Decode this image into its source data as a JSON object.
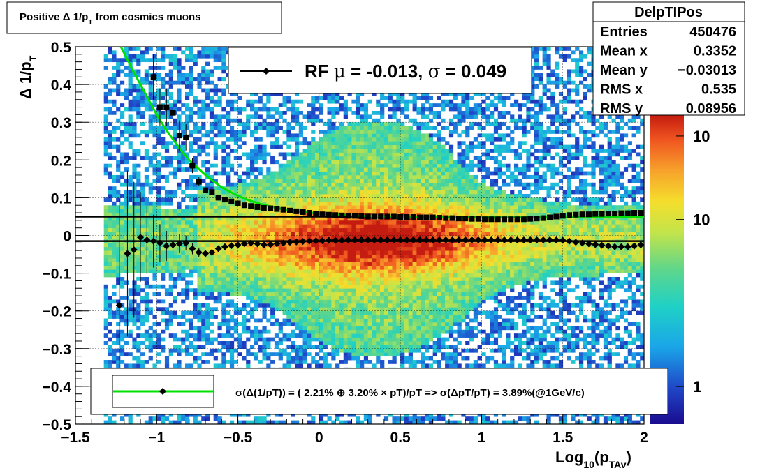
{
  "chart_data": {
    "type": "heatmap",
    "title": "Positive Δ 1/p",
    "title_sub": "T",
    "title_tail": " from cosmics muons",
    "ylabel": "Δ 1/p",
    "ylabel_sub": "T",
    "xlabel": "Log",
    "xlabel_sub": "10",
    "xlabel_mid": "(p",
    "xlabel_sub2": "TAv",
    "xlabel_end": ")",
    "xlim": [
      -1.5,
      2.0
    ],
    "ylim": [
      -0.5,
      0.5
    ],
    "xticks": [
      -1.5,
      -1.0,
      -0.5,
      0,
      0.5,
      1.0,
      1.5,
      2.0
    ],
    "xtick_labels": [
      "−1.5",
      "−1",
      "−0.5",
      "0",
      "0.5",
      "1",
      "1.5",
      "2"
    ],
    "yticks": [
      0.5,
      0.4,
      0.3,
      0.2,
      0.1,
      0,
      -0.1,
      -0.2,
      -0.3,
      -0.4,
      -0.5
    ],
    "ytick_labels": [
      "0.5",
      "0.4",
      "0.3",
      "0.2",
      "0.1",
      "0",
      "−0.1",
      "−0.2",
      "−0.3",
      "−0.4",
      "−0.5"
    ],
    "grid": true,
    "colorbar": {
      "scale": "log",
      "labels": [
        {
          "text": "10",
          "log10": 3.0
        },
        {
          "text": "10",
          "log10": 2.0
        },
        {
          "text": "1",
          "log10": 0.0
        }
      ],
      "range_log10": [
        -0.45,
        3.25
      ]
    },
    "legend_fit": {
      "label_prefix": "RF ",
      "mu_symbol": "μ",
      "mu_text": " = -0.013, ",
      "sigma_symbol": "σ",
      "sigma_text": " =   0.049"
    },
    "legend_resolution": {
      "text": "σ(Δ(1/pT)) = ( 2.21% ⊕  3.20% × pT)/pT => σ(ΔpT/pT) =  3.89%(@1GeV/c)"
    },
    "stats": {
      "name": "DelpTIPos",
      "rows": [
        {
          "label": "Entries",
          "value": "450476"
        },
        {
          "label": "Mean x",
          "value": "0.3352"
        },
        {
          "label": "Mean y",
          "value": "−0.03013"
        },
        {
          "label": "RMS x",
          "value": "0.535"
        },
        {
          "label": "RMS y",
          "value": "0.08956"
        }
      ]
    },
    "reference_lines": [
      0.05,
      -0.015
    ],
    "series": [
      {
        "name": "mean",
        "marker": "diamond",
        "x": [
          -1.23,
          -1.18,
          -1.14,
          -1.1,
          -1.06,
          -1.02,
          -0.98,
          -0.94,
          -0.9,
          -0.86,
          -0.82,
          -0.78,
          -0.74,
          -0.7,
          -0.66,
          -0.62,
          -0.58,
          -0.54,
          -0.5,
          -0.46,
          -0.42,
          -0.38,
          -0.34,
          -0.3,
          -0.26,
          -0.22,
          -0.18,
          -0.14,
          -0.1,
          -0.06,
          -0.02,
          0.02,
          0.06,
          0.1,
          0.14,
          0.18,
          0.22,
          0.26,
          0.3,
          0.34,
          0.38,
          0.42,
          0.46,
          0.5,
          0.54,
          0.58,
          0.62,
          0.66,
          0.7,
          0.74,
          0.78,
          0.82,
          0.86,
          0.9,
          0.94,
          0.98,
          1.02,
          1.06,
          1.1,
          1.14,
          1.18,
          1.22,
          1.26,
          1.3,
          1.34,
          1.38,
          1.42,
          1.46,
          1.5,
          1.54,
          1.58,
          1.62,
          1.66,
          1.7,
          1.74,
          1.78,
          1.82,
          1.86,
          1.9,
          1.94,
          1.98
        ],
        "y": [
          -0.185,
          -0.048,
          -0.038,
          -0.005,
          -0.012,
          -0.015,
          -0.02,
          -0.028,
          -0.025,
          -0.022,
          -0.02,
          -0.035,
          -0.045,
          -0.048,
          -0.045,
          -0.035,
          -0.03,
          -0.027,
          -0.025,
          -0.022,
          -0.02,
          -0.022,
          -0.025,
          -0.024,
          -0.022,
          -0.02,
          -0.018,
          -0.017,
          -0.016,
          -0.015,
          -0.014,
          -0.014,
          -0.013,
          -0.013,
          -0.013,
          -0.012,
          -0.012,
          -0.012,
          -0.012,
          -0.012,
          -0.012,
          -0.012,
          -0.012,
          -0.012,
          -0.012,
          -0.012,
          -0.012,
          -0.012,
          -0.012,
          -0.012,
          -0.012,
          -0.012,
          -0.012,
          -0.012,
          -0.012,
          -0.012,
          -0.012,
          -0.012,
          -0.012,
          -0.012,
          -0.012,
          -0.012,
          -0.012,
          -0.012,
          -0.012,
          -0.012,
          -0.012,
          -0.012,
          -0.013,
          -0.015,
          -0.018,
          -0.02,
          -0.022,
          -0.024,
          -0.026,
          -0.028,
          -0.03,
          -0.03,
          -0.03,
          -0.028,
          -0.025
        ],
        "err": [
          0.28,
          0.22,
          0.18,
          0.12,
          0.09,
          0.07,
          0.05,
          0.04,
          0.03,
          0.025,
          0.02,
          0.015,
          0.012,
          0.01,
          0.008,
          0.006,
          0.005,
          0.004,
          0.004,
          0.003,
          0.003,
          0.003,
          0.003,
          0.003,
          0.003,
          0.003,
          0.003,
          0.003,
          0.003,
          0.003,
          0.003,
          0.003,
          0.003,
          0.003,
          0.003,
          0.003,
          0.003,
          0.003,
          0.003,
          0.003,
          0.003,
          0.003,
          0.003,
          0.003,
          0.003,
          0.003,
          0.003,
          0.003,
          0.003,
          0.003,
          0.003,
          0.003,
          0.003,
          0.003,
          0.003,
          0.003,
          0.003,
          0.003,
          0.003,
          0.003,
          0.003,
          0.003,
          0.003,
          0.003,
          0.004,
          0.004,
          0.004,
          0.004,
          0.005,
          0.005,
          0.005,
          0.005,
          0.005,
          0.006,
          0.006,
          0.006,
          0.006,
          0.006,
          0.006,
          0.006,
          0.006
        ]
      },
      {
        "name": "sigma",
        "marker": "square",
        "x": [
          -1.02,
          -0.98,
          -0.94,
          -0.9,
          -0.86,
          -0.82,
          -0.78,
          -0.74,
          -0.7,
          -0.66,
          -0.62,
          -0.58,
          -0.54,
          -0.5,
          -0.46,
          -0.42,
          -0.38,
          -0.34,
          -0.3,
          -0.26,
          -0.22,
          -0.18,
          -0.14,
          -0.1,
          -0.06,
          -0.02,
          0.02,
          0.06,
          0.1,
          0.14,
          0.18,
          0.22,
          0.26,
          0.3,
          0.34,
          0.38,
          0.42,
          0.46,
          0.5,
          0.54,
          0.58,
          0.62,
          0.66,
          0.7,
          0.74,
          0.78,
          0.82,
          0.86,
          0.9,
          0.94,
          0.98,
          1.02,
          1.06,
          1.1,
          1.14,
          1.18,
          1.22,
          1.26,
          1.3,
          1.34,
          1.38,
          1.42,
          1.46,
          1.5,
          1.54,
          1.58,
          1.62,
          1.66,
          1.7,
          1.74,
          1.78,
          1.82,
          1.86,
          1.9,
          1.94,
          1.98
        ],
        "y": [
          0.42,
          0.34,
          0.34,
          0.325,
          0.265,
          0.26,
          0.185,
          0.142,
          0.12,
          0.115,
          0.1,
          0.095,
          0.09,
          0.085,
          0.08,
          0.078,
          0.075,
          0.073,
          0.072,
          0.07,
          0.068,
          0.066,
          0.064,
          0.062,
          0.06,
          0.058,
          0.056,
          0.055,
          0.054,
          0.053,
          0.052,
          0.052,
          0.051,
          0.05,
          0.05,
          0.05,
          0.05,
          0.05,
          0.049,
          0.049,
          0.049,
          0.048,
          0.048,
          0.048,
          0.047,
          0.046,
          0.046,
          0.045,
          0.045,
          0.044,
          0.044,
          0.043,
          0.043,
          0.043,
          0.043,
          0.043,
          0.043,
          0.043,
          0.044,
          0.045,
          0.046,
          0.048,
          0.05,
          0.052,
          0.054,
          0.055,
          0.056,
          0.056,
          0.057,
          0.057,
          0.058,
          0.058,
          0.059,
          0.059,
          0.06,
          0.06
        ],
        "err": [
          0.06,
          0.05,
          0.05,
          0.045,
          0.04,
          0.035,
          0.02,
          0.012,
          0.008,
          0.006,
          0.005,
          0.004,
          0.004,
          0.003,
          0.003,
          0.003,
          0.003,
          0.003,
          0.003,
          0.003,
          0.003,
          0.003,
          0.003,
          0.003,
          0.003,
          0.003,
          0.003,
          0.003,
          0.003,
          0.003,
          0.003,
          0.003,
          0.003,
          0.003,
          0.003,
          0.003,
          0.003,
          0.003,
          0.003,
          0.003,
          0.003,
          0.003,
          0.003,
          0.003,
          0.003,
          0.003,
          0.003,
          0.003,
          0.003,
          0.003,
          0.003,
          0.003,
          0.003,
          0.003,
          0.003,
          0.003,
          0.003,
          0.003,
          0.003,
          0.003,
          0.003,
          0.003,
          0.003,
          0.003,
          0.003,
          0.003,
          0.004,
          0.004,
          0.004,
          0.004,
          0.004,
          0.004,
          0.004,
          0.004,
          0.004,
          0.004
        ]
      },
      {
        "name": "fit",
        "type": "line",
        "color": "#00e000",
        "x": [
          -1.22,
          -1.15,
          -1.1,
          -1.05,
          -1.0,
          -0.95,
          -0.9,
          -0.85,
          -0.8,
          -0.75,
          -0.7,
          -0.65,
          -0.6,
          -0.55,
          -0.5,
          -0.45,
          -0.4,
          -0.35,
          -0.3,
          -0.25,
          -0.2,
          -0.15,
          -0.1,
          -0.05,
          0,
          0.1,
          0.2,
          0.3,
          0.5,
          0.75,
          1.0,
          1.25,
          1.5,
          1.75,
          2.0
        ],
        "y": [
          0.5,
          0.44,
          0.4,
          0.36,
          0.32,
          0.285,
          0.255,
          0.225,
          0.2,
          0.18,
          0.16,
          0.143,
          0.128,
          0.116,
          0.105,
          0.096,
          0.089,
          0.082,
          0.077,
          0.072,
          0.068,
          0.065,
          0.062,
          0.06,
          0.058,
          0.055,
          0.053,
          0.051,
          0.05,
          0.049,
          0.049,
          0.049,
          0.049,
          0.049,
          0.049
        ]
      }
    ]
  }
}
